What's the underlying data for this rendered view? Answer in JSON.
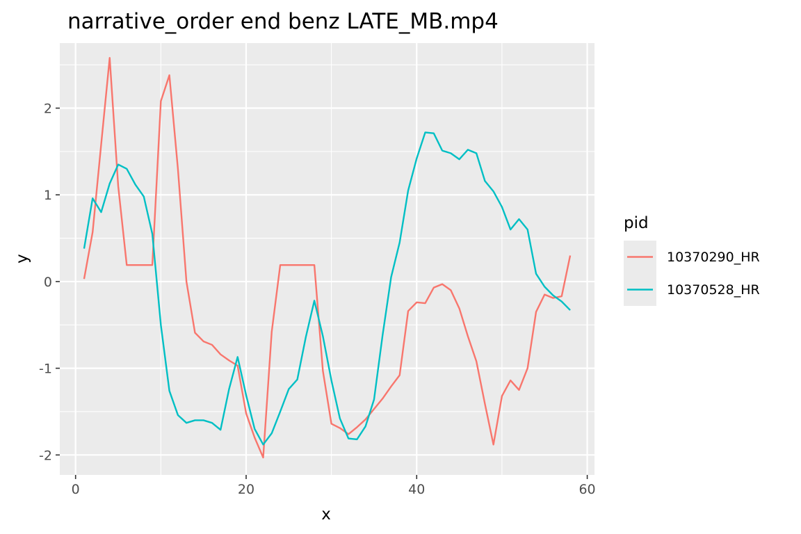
{
  "chart_data": {
    "type": "line",
    "title": "narrative_order end benz LATE_MB.mp4",
    "xlabel": "x",
    "ylabel": "y",
    "xlim": [
      -1.85,
      60.85
    ],
    "ylim": [
      -2.23,
      2.75
    ],
    "x_ticks": [
      0,
      20,
      40,
      60
    ],
    "x_tick_labels": [
      "0",
      "20",
      "40",
      "60"
    ],
    "y_ticks": [
      -2,
      -1,
      0,
      1,
      2
    ],
    "y_tick_labels": [
      "-2",
      "-1",
      "0",
      "1",
      "2"
    ],
    "grid": true,
    "legend": {
      "title": "pid",
      "position": "right"
    },
    "series": [
      {
        "name": "10370290_HR",
        "color": "#F8766D",
        "x": [
          1,
          2,
          3,
          4,
          5,
          6,
          7,
          8,
          9,
          10,
          11,
          12,
          13,
          14,
          15,
          16,
          17,
          18,
          19,
          20,
          21,
          22,
          23,
          24,
          25,
          26,
          27,
          28,
          29,
          30,
          31,
          32,
          33,
          34,
          35,
          36,
          37,
          38,
          39,
          40,
          41,
          42,
          43,
          44,
          45,
          46,
          47,
          48,
          49,
          50,
          51,
          52,
          53,
          54,
          55,
          56,
          57,
          58
        ],
        "y": [
          0.03,
          0.57,
          1.58,
          2.58,
          1.1,
          0.19,
          0.19,
          0.19,
          0.19,
          2.08,
          2.38,
          1.3,
          0.0,
          -0.59,
          -0.69,
          -0.73,
          -0.84,
          -0.91,
          -0.97,
          -1.52,
          -1.8,
          -2.03,
          -0.58,
          0.19,
          0.19,
          0.19,
          0.19,
          0.19,
          -1.03,
          -1.64,
          -1.69,
          -1.76,
          -1.68,
          -1.59,
          -1.47,
          -1.35,
          -1.21,
          -1.08,
          -0.34,
          -0.24,
          -0.25,
          -0.07,
          -0.03,
          -0.1,
          -0.31,
          -0.63,
          -0.92,
          -1.41,
          -1.88,
          -1.32,
          -1.14,
          -1.25,
          -1.0,
          -0.35,
          -0.15,
          -0.19,
          -0.17,
          0.3
        ]
      },
      {
        "name": "10370528_HR",
        "color": "#00BFC4",
        "x": [
          1,
          2,
          3,
          4,
          5,
          6,
          7,
          8,
          9,
          10,
          11,
          12,
          13,
          14,
          15,
          16,
          17,
          18,
          19,
          20,
          21,
          22,
          23,
          24,
          25,
          26,
          27,
          28,
          29,
          30,
          31,
          32,
          33,
          34,
          35,
          36,
          37,
          38,
          39,
          40,
          41,
          42,
          43,
          44,
          45,
          46,
          47,
          48,
          49,
          50,
          51,
          52,
          53,
          54,
          55,
          56,
          57,
          58
        ],
        "y": [
          0.38,
          0.96,
          0.8,
          1.13,
          1.35,
          1.3,
          1.12,
          0.98,
          0.55,
          -0.5,
          -1.26,
          -1.54,
          -1.63,
          -1.6,
          -1.6,
          -1.63,
          -1.71,
          -1.24,
          -0.87,
          -1.31,
          -1.7,
          -1.88,
          -1.75,
          -1.5,
          -1.24,
          -1.13,
          -0.64,
          -0.22,
          -0.63,
          -1.14,
          -1.58,
          -1.81,
          -1.82,
          -1.67,
          -1.36,
          -0.62,
          0.05,
          0.45,
          1.05,
          1.42,
          1.72,
          1.71,
          1.51,
          1.48,
          1.41,
          1.52,
          1.48,
          1.16,
          1.04,
          0.86,
          0.6,
          0.72,
          0.6,
          0.09,
          -0.06,
          -0.16,
          -0.23,
          -0.33
        ]
      }
    ]
  }
}
